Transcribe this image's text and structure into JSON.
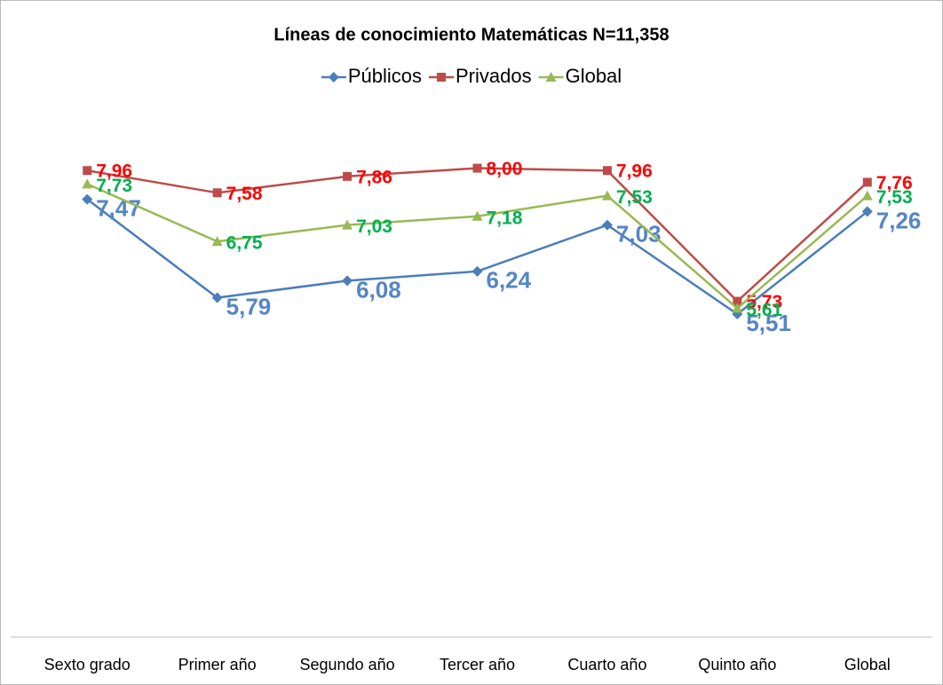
{
  "chart_data": {
    "type": "line",
    "title": "Líneas de conocimiento Matemáticas  N=11,358",
    "categories": [
      "Sexto grado",
      "Primer año",
      "Segundo año",
      "Tercer año",
      "Cuarto año",
      "Quinto año",
      "Global"
    ],
    "series": [
      {
        "name": "Públicos",
        "color": "#4a7ebb",
        "label_color": "#5585c5",
        "marker": "diamond",
        "values": [
          7.47,
          5.79,
          6.08,
          6.24,
          7.03,
          5.51,
          7.26
        ],
        "value_labels": [
          "7,47",
          "5,79",
          "6,08",
          "6,24",
          "7,03",
          "5,51",
          "7,26"
        ]
      },
      {
        "name": "Privados",
        "color": "#be4b48",
        "label_color": "#ff0000",
        "marker": "square",
        "values": [
          7.96,
          7.58,
          7.86,
          8.0,
          7.96,
          5.73,
          7.76
        ],
        "value_labels": [
          "7,96",
          "7,58",
          "7,86",
          "8,00",
          "7,96",
          "5,73",
          "7,76"
        ]
      },
      {
        "name": "Global",
        "color": "#98b954",
        "label_color": "#00b050",
        "marker": "triangle",
        "values": [
          7.73,
          6.75,
          7.03,
          7.18,
          7.53,
          5.61,
          7.53
        ],
        "value_labels": [
          "7,73",
          "6,75",
          "7,03",
          "7,18",
          "7,53",
          "5,61",
          "7,53"
        ]
      }
    ],
    "ylim": [
      0,
      9
    ],
    "grid": false,
    "legend": "top"
  }
}
